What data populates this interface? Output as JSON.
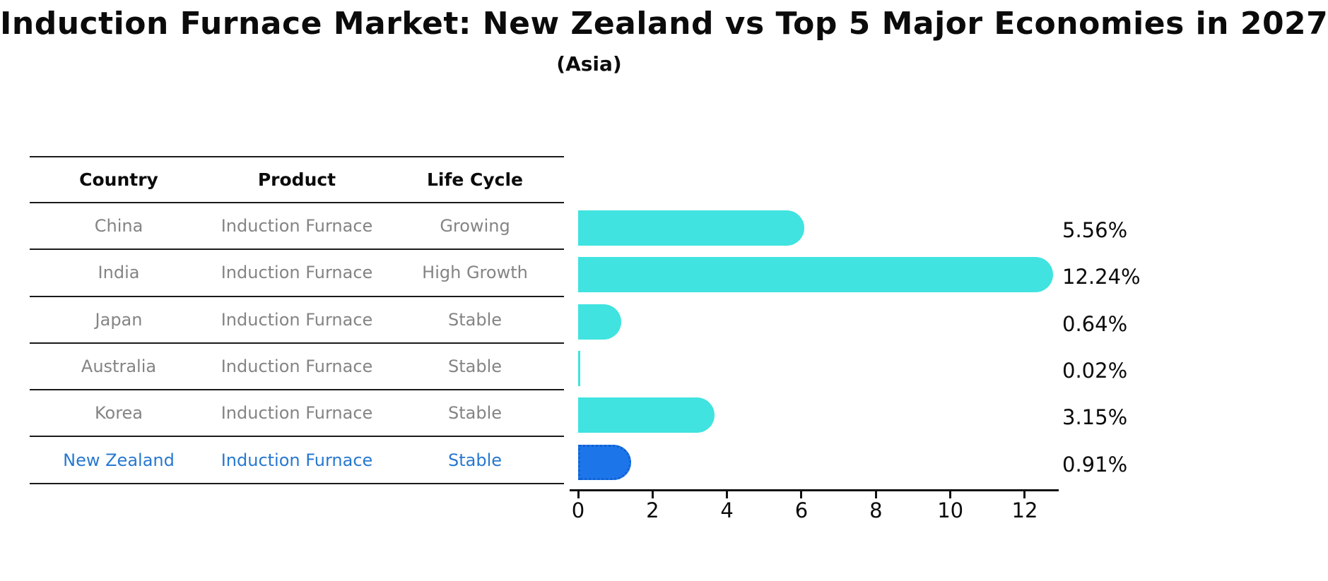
{
  "title": "Induction Furnace Market: New Zealand vs Top 5 Major Economies in 2027",
  "subtitle": "(Asia)",
  "table": {
    "columns": [
      "Country",
      "Product",
      "Life Cycle"
    ],
    "rows": [
      {
        "country": "China",
        "product": "Induction Furnace",
        "life_cycle": "Growing"
      },
      {
        "country": "India",
        "product": "Induction Furnace",
        "life_cycle": "High Growth"
      },
      {
        "country": "Japan",
        "product": "Induction Furnace",
        "life_cycle": "Stable"
      },
      {
        "country": "Australia",
        "product": "Induction Furnace",
        "life_cycle": "Stable"
      },
      {
        "country": "Korea",
        "product": "Induction Furnace",
        "life_cycle": "Stable"
      },
      {
        "country": "New Zealand",
        "product": "Induction Furnace",
        "life_cycle": "Stable"
      }
    ],
    "highlighted_row": "New Zealand"
  },
  "chart_data": {
    "type": "bar",
    "orientation": "horizontal",
    "categories": [
      "China",
      "India",
      "Japan",
      "Australia",
      "Korea",
      "New Zealand"
    ],
    "values": [
      5.56,
      12.24,
      0.64,
      0.02,
      3.15,
      0.91
    ],
    "value_labels": [
      "5.56%",
      "12.24%",
      "0.64%",
      "0.02%",
      "3.15%",
      "0.91%"
    ],
    "xticks": [
      0,
      2,
      4,
      6,
      8,
      10,
      12
    ],
    "xlim": [
      0,
      13
    ],
    "grid": false,
    "legend": "none",
    "highlight_index": 5
  },
  "colors": {
    "bar": "#40E3DF",
    "highlight_bar": "#1D76E9",
    "highlight_bar_border": "#1161D2",
    "highlight_text": "#2878D0",
    "row_text": "#848484",
    "axis": "#111111"
  }
}
